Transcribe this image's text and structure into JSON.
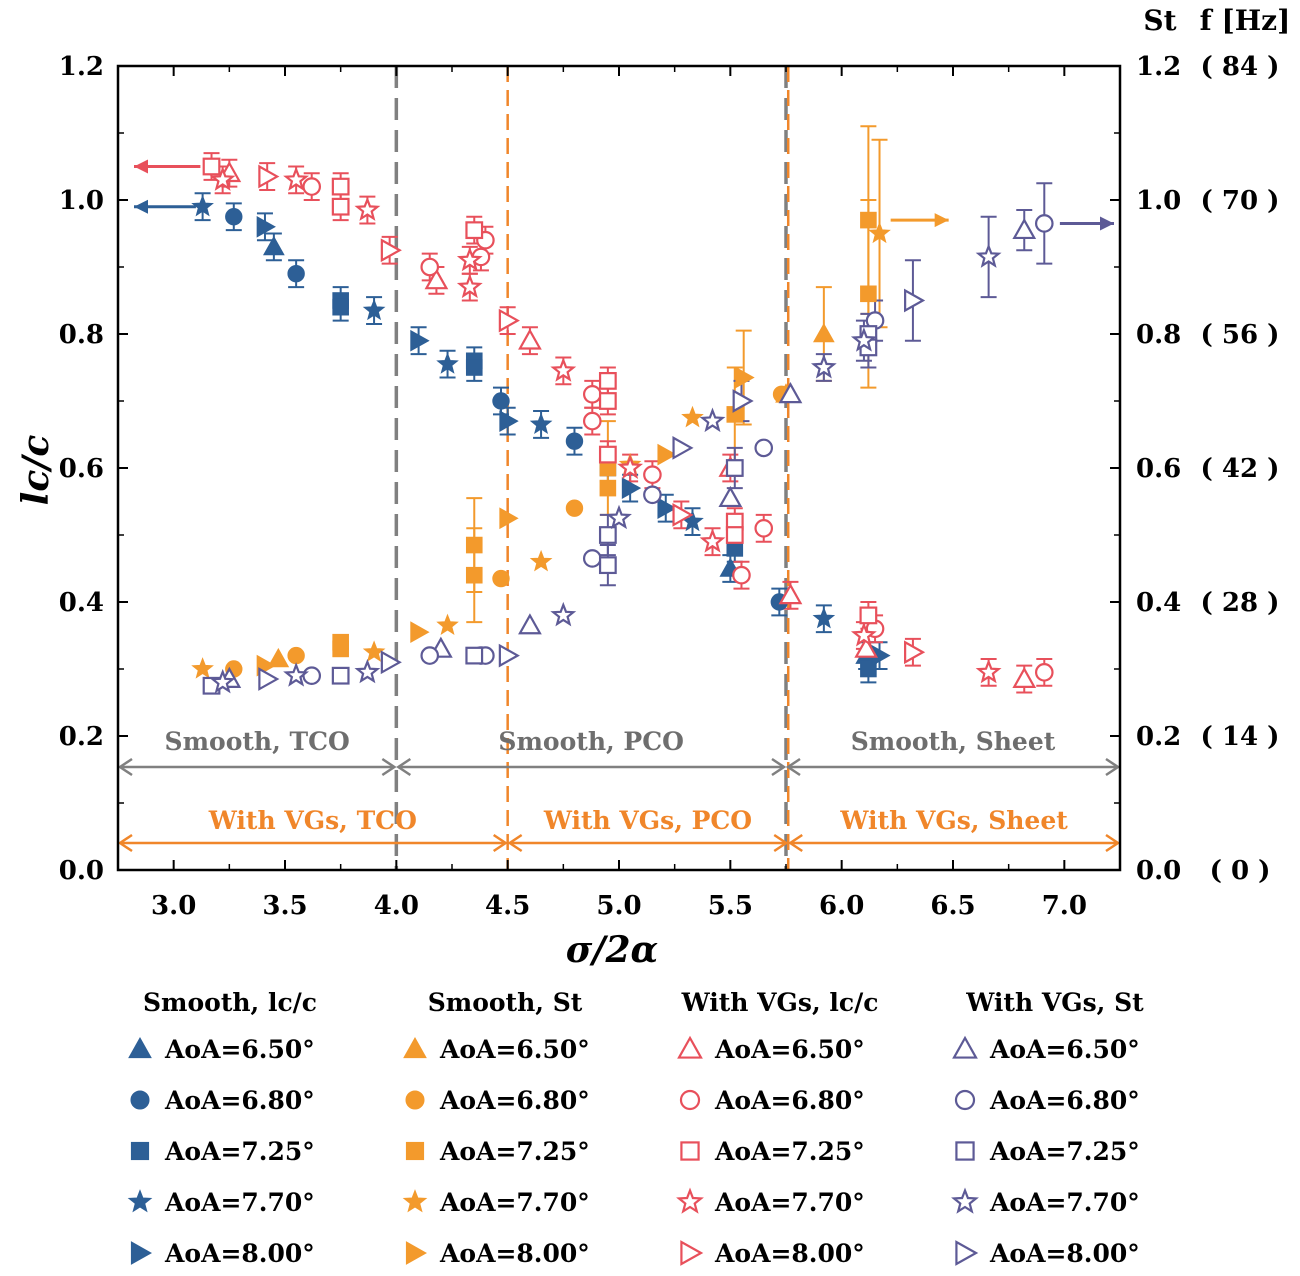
{
  "chart_data": {
    "type": "scatter",
    "xlabel": "σ/2α",
    "ylabel": "lc/c",
    "y2label_st": "St",
    "y2label_f": "f [Hz]",
    "xlim": [
      2.75,
      7.25
    ],
    "ylim": [
      0,
      1.2
    ],
    "x_ticks": [
      "3.0",
      "3.5",
      "4.0",
      "4.5",
      "5.0",
      "5.5",
      "6.0",
      "6.5",
      "7.0"
    ],
    "y_ticks": [
      "0.0",
      "0.2",
      "0.4",
      "0.6",
      "0.8",
      "1.0",
      "1.2"
    ],
    "y2_st_ticks": [
      "0.0",
      "0.2",
      "0.4",
      "0.6",
      "0.8",
      "1.0",
      "1.2"
    ],
    "y2_f_ticks": [
      "( 0 )",
      "( 14 )",
      "( 28 )",
      "( 42 )",
      "( 56 )",
      "( 70 )",
      "( 84 )"
    ],
    "regions": {
      "smooth_boundaries": [
        4.0,
        5.75
      ],
      "vg_boundaries": [
        4.5,
        5.76
      ],
      "smooth_labels": [
        "Smooth, TCO",
        "Smooth, PCO",
        "Smooth, Sheet"
      ],
      "vg_labels": [
        "With VGs, TCO",
        "With VGs, PCO",
        "With VGs, Sheet"
      ]
    },
    "colors": {
      "smooth_lc": "#2d5f96",
      "smooth_st": "#f39a2c",
      "vg_lc": "#e8505b",
      "vg_st": "#5d5a96",
      "smooth_boundary": "#808080",
      "vg_boundary": "#f0862a"
    },
    "legend_groups": [
      {
        "title": "Smooth, lc/c",
        "fill": "filled",
        "color": "#2d5f96"
      },
      {
        "title": "Smooth, St",
        "fill": "filled",
        "color": "#f39a2c"
      },
      {
        "title": "With VGs, lc/c",
        "fill": "open",
        "color": "#e8505b"
      },
      {
        "title": "With VGs, St",
        "fill": "open",
        "color": "#5d5a96"
      }
    ],
    "legend_entries": [
      {
        "marker": "triangle",
        "label": "AoA=6.50°"
      },
      {
        "marker": "circle",
        "label": "AoA=6.80°"
      },
      {
        "marker": "square",
        "label": "AoA=7.25°"
      },
      {
        "marker": "star",
        "label": "AoA=7.70°"
      },
      {
        "marker": "right-triangle",
        "label": "AoA=8.00°"
      }
    ],
    "series": [
      {
        "group": "Smooth, lc/c",
        "aoa": "6.50°",
        "marker": "triangle",
        "points": [
          [
            3.45,
            0.93,
            0.02
          ],
          [
            5.5,
            0.45,
            0.02
          ],
          [
            6.11,
            0.32,
            0.02
          ]
        ]
      },
      {
        "group": "Smooth, lc/c",
        "aoa": "6.80°",
        "marker": "circle",
        "points": [
          [
            3.27,
            0.975,
            0.02
          ],
          [
            3.55,
            0.89,
            0.02
          ],
          [
            4.47,
            0.7,
            0.02
          ],
          [
            4.8,
            0.64,
            0.02
          ],
          [
            5.72,
            0.4,
            0.02
          ]
        ]
      },
      {
        "group": "Smooth, lc/c",
        "aoa": "7.25°",
        "marker": "square",
        "points": [
          [
            3.75,
            0.85,
            0.02
          ],
          [
            3.75,
            0.84,
            0.02
          ],
          [
            4.35,
            0.76,
            0.02
          ],
          [
            4.35,
            0.75,
            0.02
          ],
          [
            4.95,
            0.6,
            0.02
          ],
          [
            5.52,
            0.48,
            0.02
          ],
          [
            6.12,
            0.3,
            0.02
          ]
        ]
      },
      {
        "group": "Smooth, lc/c",
        "aoa": "7.70°",
        "marker": "star",
        "points": [
          [
            3.13,
            0.99,
            0.02
          ],
          [
            3.9,
            0.835,
            0.02
          ],
          [
            4.23,
            0.755,
            0.02
          ],
          [
            4.65,
            0.665,
            0.02
          ],
          [
            5.33,
            0.52,
            0.02
          ],
          [
            5.92,
            0.375,
            0.02
          ]
        ]
      },
      {
        "group": "Smooth, lc/c",
        "aoa": "8.00°",
        "marker": "right-triangle",
        "points": [
          [
            3.41,
            0.96,
            0.02
          ],
          [
            4.1,
            0.79,
            0.02
          ],
          [
            4.5,
            0.67,
            0.02
          ],
          [
            5.05,
            0.57,
            0.02
          ],
          [
            5.21,
            0.54,
            0.02
          ],
          [
            6.17,
            0.32,
            0.02
          ]
        ]
      },
      {
        "group": "Smooth, St",
        "aoa": "6.50°",
        "marker": "triangle",
        "points": [
          [
            3.47,
            0.315,
            0
          ],
          [
            5.92,
            0.8,
            0.07
          ],
          [
            5.75,
            0.71,
            0
          ]
        ]
      },
      {
        "group": "Smooth, St",
        "aoa": "6.80°",
        "marker": "circle",
        "points": [
          [
            3.27,
            0.3,
            0
          ],
          [
            3.55,
            0.32,
            0
          ],
          [
            4.47,
            0.435,
            0
          ],
          [
            4.8,
            0.54,
            0
          ],
          [
            5.73,
            0.71,
            0
          ]
        ]
      },
      {
        "group": "Smooth, St",
        "aoa": "7.25°",
        "marker": "square",
        "points": [
          [
            3.75,
            0.34,
            0
          ],
          [
            3.75,
            0.33,
            0
          ],
          [
            4.35,
            0.485,
            0.07
          ],
          [
            4.35,
            0.44,
            0.07
          ],
          [
            4.95,
            0.6,
            0.07
          ],
          [
            4.95,
            0.57,
            0
          ],
          [
            5.52,
            0.68,
            0.07
          ],
          [
            6.12,
            0.97,
            0.14
          ],
          [
            6.12,
            0.86,
            0.14
          ]
        ]
      },
      {
        "group": "Smooth, St",
        "aoa": "7.70°",
        "marker": "star",
        "points": [
          [
            3.13,
            0.3,
            0
          ],
          [
            3.9,
            0.325,
            0
          ],
          [
            4.23,
            0.365,
            0
          ],
          [
            4.65,
            0.46,
            0
          ],
          [
            5.05,
            0.605,
            0
          ],
          [
            5.33,
            0.675,
            0
          ],
          [
            6.17,
            0.95,
            0.14
          ]
        ]
      },
      {
        "group": "Smooth, St",
        "aoa": "8.00°",
        "marker": "right-triangle",
        "points": [
          [
            3.41,
            0.305,
            0
          ],
          [
            4.1,
            0.355,
            0
          ],
          [
            4.5,
            0.525,
            0
          ],
          [
            5.21,
            0.62,
            0
          ],
          [
            5.56,
            0.735,
            0.07
          ]
        ]
      },
      {
        "group": "With VGs, lc/c",
        "aoa": "6.50°",
        "marker": "triangle",
        "points": [
          [
            3.25,
            1.04,
            0.02
          ],
          [
            4.18,
            0.88,
            0.02
          ],
          [
            4.6,
            0.79,
            0.02
          ],
          [
            5.5,
            0.6,
            0.02
          ],
          [
            5.77,
            0.41,
            0.02
          ],
          [
            6.11,
            0.33,
            0.02
          ]
        ]
      },
      {
        "group": "With VGs, lc/c",
        "aoa": "6.80°",
        "marker": "circle",
        "points": [
          [
            3.62,
            1.02,
            0.02
          ],
          [
            4.15,
            0.9,
            0.02
          ],
          [
            4.38,
            0.915,
            0.02
          ],
          [
            4.4,
            0.94,
            0.02
          ],
          [
            4.88,
            0.71,
            0.02
          ],
          [
            4.88,
            0.67,
            0.02
          ],
          [
            5.15,
            0.59,
            0.02
          ],
          [
            5.55,
            0.44,
            0.02
          ],
          [
            5.65,
            0.51,
            0.02
          ],
          [
            6.15,
            0.36,
            0.02
          ]
        ]
      },
      {
        "group": "With VGs, lc/c",
        "aoa": "7.25°",
        "marker": "square",
        "points": [
          [
            3.17,
            1.05,
            0.02
          ],
          [
            3.75,
            1.02,
            0.02
          ],
          [
            3.75,
            0.99,
            0.02
          ],
          [
            4.35,
            0.955,
            0.02
          ],
          [
            4.95,
            0.73,
            0.02
          ],
          [
            4.95,
            0.7,
            0.02
          ],
          [
            4.95,
            0.62,
            0.02
          ],
          [
            5.52,
            0.52,
            0.02
          ],
          [
            5.52,
            0.5,
            0.02
          ],
          [
            6.12,
            0.38,
            0.02
          ]
        ]
      },
      {
        "group": "With VGs, lc/c",
        "aoa": "7.70°",
        "marker": "star",
        "points": [
          [
            3.22,
            1.03,
            0.02
          ],
          [
            3.55,
            1.03,
            0.02
          ],
          [
            3.87,
            0.985,
            0.02
          ],
          [
            4.33,
            0.87,
            0.02
          ],
          [
            4.33,
            0.91,
            0.02
          ],
          [
            4.75,
            0.745,
            0.02
          ],
          [
            5.05,
            0.6,
            0.02
          ],
          [
            5.42,
            0.49,
            0.02
          ],
          [
            6.1,
            0.35,
            0.02
          ],
          [
            6.66,
            0.295,
            0.02
          ]
        ]
      },
      {
        "group": "With VGs, lc/c",
        "aoa": "8.00°",
        "marker": "right-triangle",
        "points": [
          [
            3.42,
            1.035,
            0.02
          ],
          [
            3.97,
            0.925,
            0.02
          ],
          [
            4.5,
            0.82,
            0.02
          ],
          [
            5.28,
            0.53,
            0.02
          ],
          [
            6.32,
            0.325,
            0.02
          ]
        ]
      },
      {
        "group": "With VGs, lc/c",
        "aoa": "6.50°b",
        "marker": "triangle",
        "points": [
          [
            6.82,
            0.285,
            0.02
          ]
        ]
      },
      {
        "group": "With VGs, lc/c",
        "aoa": "6.80°b",
        "marker": "circle",
        "points": [
          [
            6.91,
            0.295,
            0.02
          ]
        ]
      },
      {
        "group": "With VGs, St",
        "aoa": "6.50°",
        "marker": "triangle",
        "points": [
          [
            3.25,
            0.285,
            0
          ],
          [
            4.2,
            0.33,
            0
          ],
          [
            4.6,
            0.365,
            0
          ],
          [
            5.5,
            0.555,
            0
          ],
          [
            5.77,
            0.71,
            0
          ],
          [
            6.82,
            0.955,
            0.03
          ]
        ]
      },
      {
        "group": "With VGs, St",
        "aoa": "6.80°",
        "marker": "circle",
        "points": [
          [
            3.62,
            0.29,
            0
          ],
          [
            4.15,
            0.32,
            0
          ],
          [
            4.38,
            0.32,
            0
          ],
          [
            4.4,
            0.32,
            0
          ],
          [
            4.88,
            0.465,
            0
          ],
          [
            5.15,
            0.56,
            0
          ],
          [
            5.65,
            0.63,
            0
          ],
          [
            6.15,
            0.82,
            0.03
          ],
          [
            6.91,
            0.965,
            0.06
          ]
        ]
      },
      {
        "group": "With VGs, St",
        "aoa": "7.25°",
        "marker": "square",
        "points": [
          [
            3.17,
            0.275,
            0
          ],
          [
            3.75,
            0.29,
            0
          ],
          [
            4.35,
            0.32,
            0
          ],
          [
            4.95,
            0.5,
            0.03
          ],
          [
            4.95,
            0.455,
            0.03
          ],
          [
            5.52,
            0.6,
            0.03
          ],
          [
            6.12,
            0.8,
            0.03
          ],
          [
            6.12,
            0.78,
            0.03
          ]
        ]
      },
      {
        "group": "With VGs, St",
        "aoa": "7.70°",
        "marker": "star",
        "points": [
          [
            3.22,
            0.28,
            0
          ],
          [
            3.55,
            0.29,
            0
          ],
          [
            3.87,
            0.295,
            0
          ],
          [
            4.75,
            0.38,
            0
          ],
          [
            5.0,
            0.525,
            0
          ],
          [
            5.42,
            0.67,
            0
          ],
          [
            5.92,
            0.75,
            0.02
          ],
          [
            6.1,
            0.79,
            0.03
          ],
          [
            6.66,
            0.915,
            0.06
          ]
        ]
      },
      {
        "group": "With VGs, St",
        "aoa": "8.00°",
        "marker": "right-triangle",
        "points": [
          [
            3.42,
            0.285,
            0
          ],
          [
            3.97,
            0.31,
            0
          ],
          [
            4.5,
            0.32,
            0
          ],
          [
            5.28,
            0.63,
            0
          ],
          [
            5.55,
            0.7,
            0.03
          ],
          [
            6.32,
            0.85,
            0.06
          ]
        ]
      }
    ],
    "arrows": [
      {
        "target": "left",
        "color": "#e8505b",
        "x_from": 3.12,
        "y": 1.05
      },
      {
        "target": "left",
        "color": "#2d5f96",
        "x_from": 3.1,
        "y": 0.99
      },
      {
        "target": "right",
        "color": "#f39a2c",
        "x_from": 6.22,
        "y": 0.97
      },
      {
        "target": "right",
        "color": "#5d5a96",
        "x_from": 6.98,
        "y": 0.965
      }
    ]
  }
}
